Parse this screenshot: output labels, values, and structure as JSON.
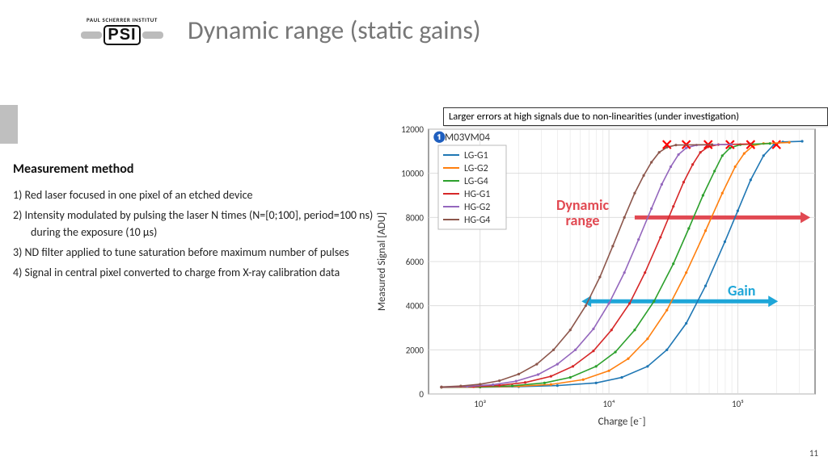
{
  "logo": {
    "institute": "PAUL SCHERRER INSTITUT",
    "abbrev": "PSI"
  },
  "title": "Dynamic range (static gains)",
  "method": {
    "heading": "Measurement method",
    "items": [
      "Red laser focused in one pixel of an etched device",
      "Intensity modulated by pulsing the laser N times (N=[0;100], period=100 ns) during the exposure (10 µs)",
      "ND filter applied to tune saturation before maximum number of pulses",
      "Signal in central pixel converted to charge from X-ray calibration data"
    ]
  },
  "annotation": "Larger errors at high signals due to non-linearities (under investigation)",
  "dyn_range_label": "Dynamic\nrange",
  "gain_label": "Gain",
  "page_number": "11",
  "chart": {
    "type": "line-log-x",
    "plot_title": "M03VM04",
    "title_marker": "❶",
    "xlabel": "Charge [e⁻]",
    "ylabel": "Measured Signal [ADU]",
    "x_log_range": [
      2.6,
      5.6
    ],
    "y_range": [
      0,
      12000
    ],
    "y_ticks": [
      0,
      2000,
      4000,
      6000,
      8000,
      10000,
      12000
    ],
    "x_decades": [
      3,
      4,
      5
    ],
    "background": "#ffffff",
    "grid_color": "#d8d8d8",
    "axis_color": "#444444",
    "text_color": "#333333",
    "marker_fontsize": 11,
    "series": [
      {
        "name": "LG-G1",
        "color": "#1f77b4",
        "points_logx_y": [
          [
            2.7,
            300
          ],
          [
            3.0,
            310
          ],
          [
            3.3,
            330
          ],
          [
            3.6,
            380
          ],
          [
            3.9,
            500
          ],
          [
            4.1,
            750
          ],
          [
            4.3,
            1250
          ],
          [
            4.45,
            2000
          ],
          [
            4.6,
            3200
          ],
          [
            4.75,
            4900
          ],
          [
            4.9,
            6900
          ],
          [
            5.0,
            8300
          ],
          [
            5.1,
            9700
          ],
          [
            5.2,
            10800
          ],
          [
            5.28,
            11300
          ],
          [
            5.35,
            11420
          ],
          [
            5.5,
            11450
          ]
        ],
        "saturation_logx": 5.3
      },
      {
        "name": "LG-G2",
        "color": "#ff7f0e",
        "points_logx_y": [
          [
            2.7,
            300
          ],
          [
            3.0,
            315
          ],
          [
            3.3,
            350
          ],
          [
            3.55,
            430
          ],
          [
            3.8,
            650
          ],
          [
            4.0,
            1050
          ],
          [
            4.15,
            1600
          ],
          [
            4.3,
            2500
          ],
          [
            4.45,
            3800
          ],
          [
            4.6,
            5500
          ],
          [
            4.75,
            7400
          ],
          [
            4.88,
            9100
          ],
          [
            4.98,
            10300
          ],
          [
            5.05,
            10900
          ],
          [
            5.12,
            11250
          ],
          [
            5.2,
            11350
          ],
          [
            5.4,
            11400
          ]
        ],
        "saturation_logx": 5.1
      },
      {
        "name": "LG-G4",
        "color": "#2ca02c",
        "points_logx_y": [
          [
            2.7,
            305
          ],
          [
            3.0,
            320
          ],
          [
            3.25,
            370
          ],
          [
            3.5,
            500
          ],
          [
            3.7,
            750
          ],
          [
            3.9,
            1250
          ],
          [
            4.05,
            1900
          ],
          [
            4.2,
            2900
          ],
          [
            4.35,
            4200
          ],
          [
            4.5,
            5900
          ],
          [
            4.62,
            7500
          ],
          [
            4.73,
            9000
          ],
          [
            4.82,
            10100
          ],
          [
            4.88,
            10800
          ],
          [
            4.94,
            11150
          ],
          [
            5.02,
            11300
          ],
          [
            5.25,
            11350
          ]
        ],
        "saturation_logx": 4.94
      },
      {
        "name": "HG-G1",
        "color": "#d62728",
        "points_logx_y": [
          [
            2.7,
            310
          ],
          [
            2.95,
            330
          ],
          [
            3.15,
            390
          ],
          [
            3.35,
            520
          ],
          [
            3.55,
            800
          ],
          [
            3.72,
            1250
          ],
          [
            3.88,
            1950
          ],
          [
            4.02,
            2900
          ],
          [
            4.16,
            4100
          ],
          [
            4.28,
            5500
          ],
          [
            4.4,
            7100
          ],
          [
            4.5,
            8500
          ],
          [
            4.58,
            9600
          ],
          [
            4.65,
            10400
          ],
          [
            4.71,
            10950
          ],
          [
            4.77,
            11200
          ],
          [
            4.85,
            11300
          ],
          [
            5.1,
            11330
          ]
        ],
        "saturation_logx": 4.77
      },
      {
        "name": "HG-G2",
        "color": "#9467bd",
        "points_logx_y": [
          [
            2.7,
            315
          ],
          [
            2.9,
            345
          ],
          [
            3.1,
            420
          ],
          [
            3.28,
            580
          ],
          [
            3.45,
            880
          ],
          [
            3.6,
            1350
          ],
          [
            3.74,
            2000
          ],
          [
            3.88,
            2950
          ],
          [
            4.0,
            4100
          ],
          [
            4.12,
            5500
          ],
          [
            4.23,
            7000
          ],
          [
            4.33,
            8400
          ],
          [
            4.41,
            9500
          ],
          [
            4.48,
            10300
          ],
          [
            4.54,
            10850
          ],
          [
            4.6,
            11150
          ],
          [
            4.68,
            11280
          ],
          [
            4.95,
            11310
          ]
        ],
        "saturation_logx": 4.6
      },
      {
        "name": "HG-G4",
        "color": "#8c564b",
        "points_logx_y": [
          [
            2.7,
            320
          ],
          [
            2.85,
            360
          ],
          [
            3.0,
            440
          ],
          [
            3.15,
            600
          ],
          [
            3.3,
            900
          ],
          [
            3.44,
            1350
          ],
          [
            3.57,
            2000
          ],
          [
            3.7,
            2900
          ],
          [
            3.82,
            4000
          ],
          [
            3.93,
            5300
          ],
          [
            4.03,
            6700
          ],
          [
            4.12,
            8000
          ],
          [
            4.2,
            9100
          ],
          [
            4.27,
            9900
          ],
          [
            4.33,
            10500
          ],
          [
            4.39,
            10950
          ],
          [
            4.45,
            11180
          ],
          [
            4.52,
            11280
          ],
          [
            4.8,
            11300
          ]
        ],
        "saturation_logx": 4.45
      }
    ],
    "dyn_arrow": {
      "y": 8000,
      "from_logx": 4.2,
      "to_logx": 5.5,
      "color": "#e14952"
    },
    "gain_arrow": {
      "y": 4200,
      "from_logx": 3.85,
      "to_logx": 5.25,
      "color": "#1ea6d8"
    },
    "saturation_marker_color": "#ff0000"
  }
}
